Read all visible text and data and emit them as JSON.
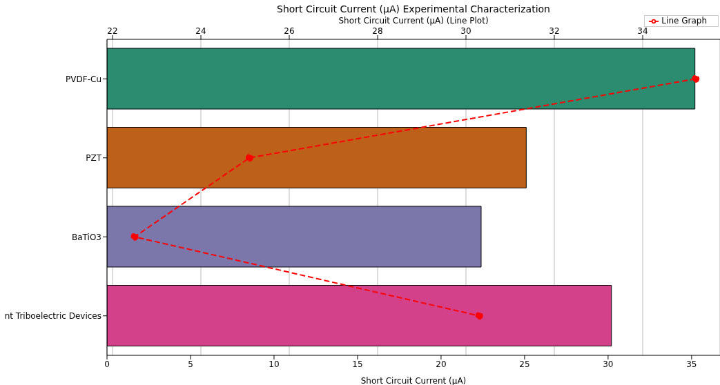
{
  "chart_data": {
    "type": "bar",
    "orientation": "horizontal",
    "title": "Short Circuit Current (µA) Experimental Characterization",
    "xlabel": "Short Circuit Current (µA)",
    "x2label": "Short Circuit Current (µA) (Line Plot)",
    "categories": [
      "PVDF-Cu",
      "PZT",
      "BaTiO3",
      "nt Triboelectric Devices"
    ],
    "series": [
      {
        "colors": [
          "#2b8c70",
          "#bd6019",
          "#7b77ab",
          "#d24189"
        ],
        "values": [
          35.2,
          25.1,
          22.4,
          30.2
        ]
      },
      {
        "type": "line",
        "name": "Line Graph",
        "color": "#ff0000",
        "axis": "x2",
        "values": [
          35.2,
          25.1,
          22.5,
          30.3
        ]
      }
    ],
    "xlim": [
      0,
      36.7
    ],
    "xticks": [
      0,
      5,
      10,
      15,
      20,
      25,
      30,
      35
    ],
    "x2lim": [
      21.875,
      35.75
    ],
    "x2ticks": [
      22,
      24,
      26,
      28,
      30,
      32,
      34
    ],
    "grid": "x",
    "legend": "top right",
    "marker": "circle",
    "line_style": "dashed"
  }
}
